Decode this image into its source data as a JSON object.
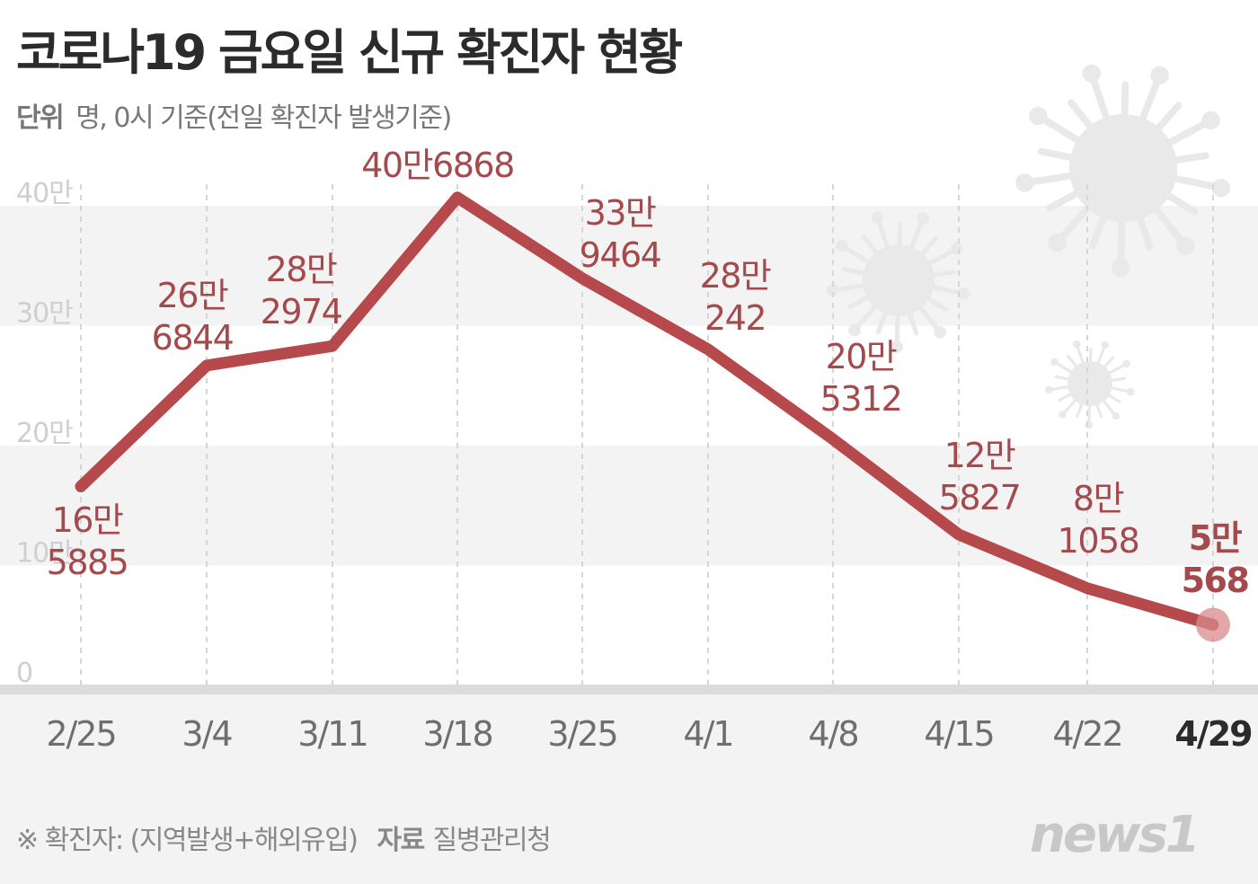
{
  "header": {
    "title": "코로나19 금요일 신규 확진자 현황",
    "unit_label": "단위",
    "unit_text": "명, 0시 기준(전일 확진자 발생기준)"
  },
  "footer": {
    "note": "※ 확진자: (지역발생+해외유입)",
    "source_label": "자료",
    "source": "질병관리청",
    "logo_text": "news1"
  },
  "colors": {
    "line": "#b5494c",
    "label": "#a44a4c",
    "band": "#f3f3f3",
    "axis_tick": "#cccccc",
    "virus": "#e9e9e9",
    "end_marker": "#d98a8e"
  },
  "chart_data": {
    "type": "line",
    "title": "코로나19 금요일 신규 확진자 현황",
    "subtitle": "단위 명, 0시 기준(전일 확진자 발생기준)",
    "xlabel": "",
    "ylabel": "명",
    "ylim": [
      0,
      400000
    ],
    "yticks": [
      0,
      100000,
      200000,
      300000,
      400000
    ],
    "ytick_labels": [
      "0",
      "10만",
      "20만",
      "30만",
      "40만"
    ],
    "grid": "alternating horizontal bands",
    "legend": "none",
    "categories": [
      "2/25",
      "3/4",
      "3/11",
      "3/18",
      "3/25",
      "4/1",
      "4/8",
      "4/15",
      "4/22",
      "4/29"
    ],
    "series": [
      {
        "name": "신규 확진자",
        "values": [
          165885,
          266844,
          282974,
          406868,
          339464,
          280242,
          205312,
          125827,
          81058,
          50568
        ],
        "labels": [
          [
            "16만",
            "5885"
          ],
          [
            "26만",
            "6844"
          ],
          [
            "28만",
            "2974"
          ],
          [
            "40만6868"
          ],
          [
            "33만",
            "9464"
          ],
          [
            "28만",
            "242"
          ],
          [
            "20만",
            "5312"
          ],
          [
            "12만",
            "5827"
          ],
          [
            "8만",
            "1058"
          ],
          [
            "5만",
            "568"
          ]
        ]
      }
    ],
    "highlight": "4/29"
  }
}
